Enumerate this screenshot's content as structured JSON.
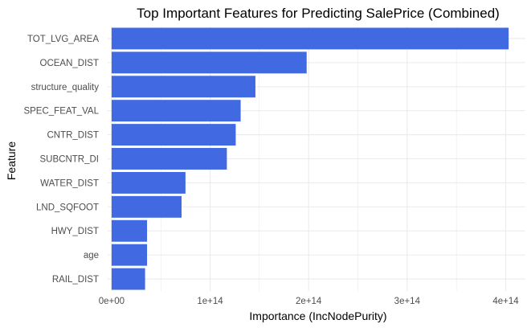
{
  "chart_data": {
    "type": "bar",
    "orientation": "horizontal",
    "title": "Top Important Features for Predicting SalePrice (Combined)",
    "xlabel": "Importance (IncNodePurity)",
    "ylabel": "Feature",
    "categories": [
      "TOT_LVG_AREA",
      "OCEAN_DIST",
      "structure_quality",
      "SPEC_FEAT_VAL",
      "CNTR_DIST",
      "SUBCNTR_DI",
      "WATER_DIST",
      "LND_SQFOOT",
      "HWY_DIST",
      "age",
      "RAIL_DIST"
    ],
    "values": [
      403000000000000.0,
      198000000000000.0,
      146000000000000.0,
      131000000000000.0,
      126000000000000.0,
      117000000000000.0,
      75000000000000.0,
      71000000000000.0,
      36000000000000.0,
      36000000000000.0,
      34000000000000.0
    ],
    "xlim": [
      -4000000000000.0,
      420000000000000.0
    ],
    "x_ticks": [
      0,
      100000000000000.0,
      200000000000000.0,
      300000000000000.0,
      400000000000000.0
    ],
    "x_tick_labels": [
      "0e+00",
      "1e+14",
      "2e+14",
      "3e+14",
      "4e+14"
    ],
    "grid": true,
    "bar_color": "#4169E1",
    "grid_color": "#ebebeb"
  }
}
